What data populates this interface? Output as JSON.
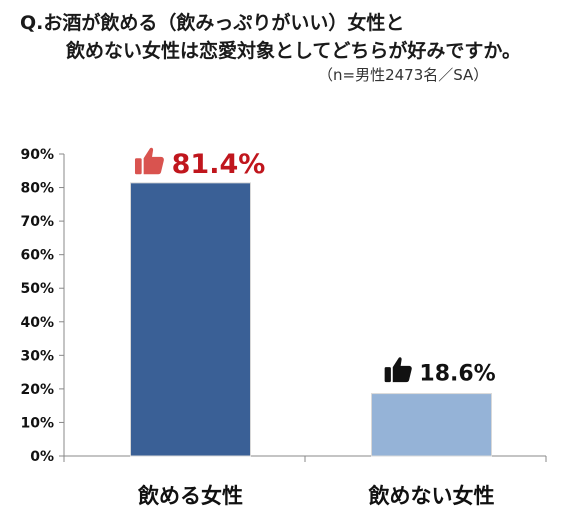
{
  "question": {
    "line1": "Q.お酒が飲める（飲みっぷりがいい）女性と",
    "line2": "飲めない女性は恋愛対象としてどちらが好みですか。",
    "note": "（n=男性2473名／SA）"
  },
  "chart_data": {
    "type": "bar",
    "title": "",
    "xlabel": "",
    "ylabel": "",
    "categories": [
      "飲める女性",
      "飲めない女性"
    ],
    "values": [
      81.4,
      18.6
    ],
    "value_labels": [
      "81.4%",
      "18.6%"
    ],
    "ylim": [
      0,
      90
    ],
    "yticks": [
      "0%",
      "10%",
      "20%",
      "30%",
      "40%",
      "50%",
      "60%",
      "70%",
      "80%",
      "90%"
    ],
    "grid": false,
    "legend": "none",
    "bar_colors": [
      "#3a6096",
      "#95b3d7"
    ],
    "label_colors": [
      "#c0161d",
      "#111111"
    ],
    "icons": [
      "thumbs-up-icon",
      "thumbs-up-icon"
    ],
    "icon_colors": [
      "#d9534f",
      "#111111"
    ]
  }
}
